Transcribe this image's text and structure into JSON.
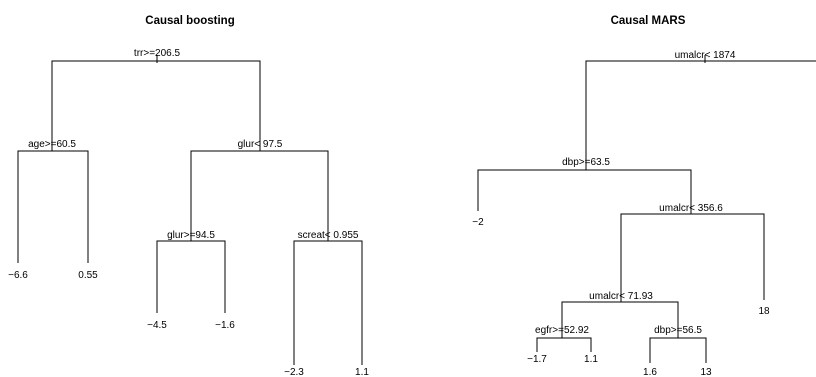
{
  "trees": [
    {
      "title": "Causal boosting",
      "nodes": [
        {
          "id": "b_root",
          "label": "trr>=206.5",
          "leaf": false
        },
        {
          "id": "b_age",
          "label": "age>=60.5",
          "leaf": false
        },
        {
          "id": "b_glur1",
          "label": "glur< 97.5",
          "leaf": false
        },
        {
          "id": "b_glur2",
          "label": "glur>=94.5",
          "leaf": false
        },
        {
          "id": "b_screat",
          "label": "screat< 0.955",
          "leaf": false
        },
        {
          "id": "b_l1",
          "label": "−6.6",
          "leaf": true
        },
        {
          "id": "b_l2",
          "label": "0.55",
          "leaf": true
        },
        {
          "id": "b_l3",
          "label": "−4.5",
          "leaf": true
        },
        {
          "id": "b_l4",
          "label": "−1.6",
          "leaf": true
        },
        {
          "id": "b_l5",
          "label": "−2.3",
          "leaf": true
        },
        {
          "id": "b_l6",
          "label": "1.1",
          "leaf": true
        }
      ]
    },
    {
      "title": "Causal MARS",
      "nodes": [
        {
          "id": "m_root",
          "label": "umalcr< 1874",
          "leaf": false
        },
        {
          "id": "m_dbp1",
          "label": "dbp>=63.5",
          "leaf": false
        },
        {
          "id": "m_um2",
          "label": "umalcr< 356.6",
          "leaf": false
        },
        {
          "id": "m_um3",
          "label": "umalcr< 71.93",
          "leaf": false
        },
        {
          "id": "m_egfr",
          "label": "egfr>=52.92",
          "leaf": false
        },
        {
          "id": "m_dbp2",
          "label": "dbp>=56.5",
          "leaf": false
        },
        {
          "id": "m_l1",
          "label": "−2",
          "leaf": true
        },
        {
          "id": "m_l2",
          "label": "18",
          "leaf": true
        },
        {
          "id": "m_l3",
          "label": "−1.7",
          "leaf": true
        },
        {
          "id": "m_l4",
          "label": "1.1",
          "leaf": true
        },
        {
          "id": "m_l5",
          "label": "1.6",
          "leaf": true
        },
        {
          "id": "m_l6",
          "label": "13",
          "leaf": true
        }
      ]
    }
  ]
}
